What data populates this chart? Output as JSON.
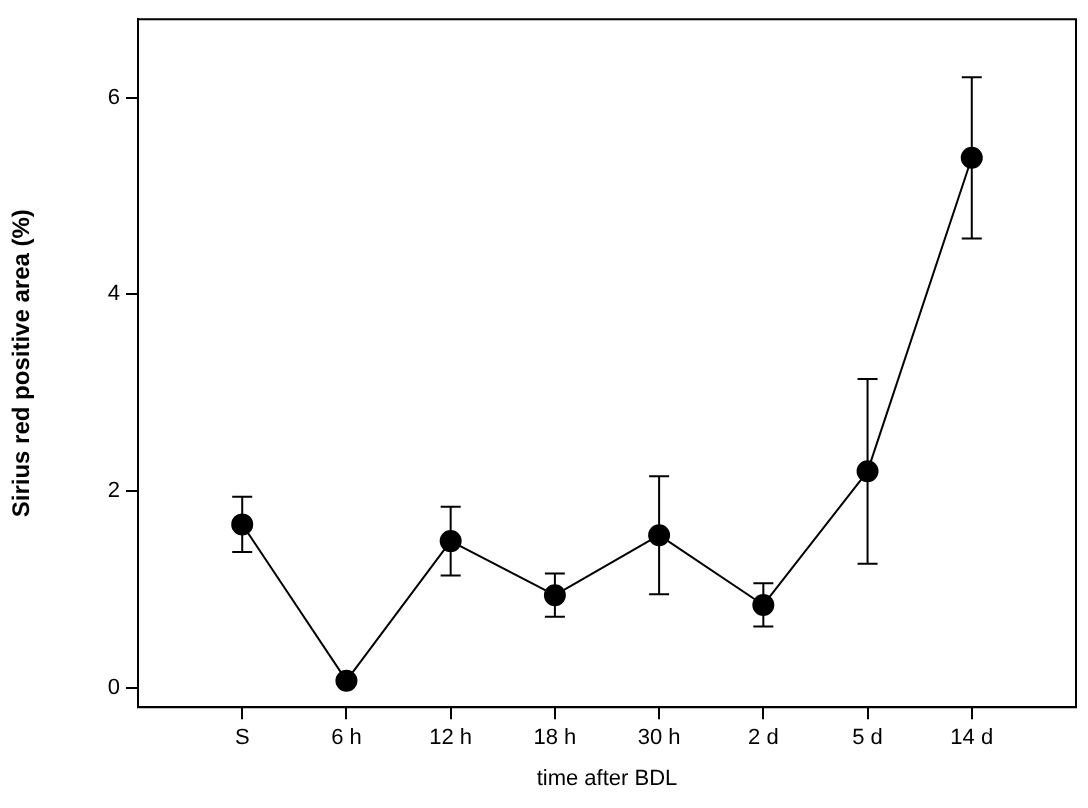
{
  "chart_data": {
    "type": "line",
    "xlabel": "time after BDL",
    "ylabel": "Sirius red positive area (%)",
    "categories": [
      "S",
      "6 h",
      "12 h",
      "18 h",
      "30 h",
      "2 d",
      "5 d",
      "14 d"
    ],
    "series": [
      {
        "color": "#000000",
        "values": [
          1.66,
          0.07,
          1.49,
          0.94,
          1.55,
          0.84,
          2.2,
          5.39
        ],
        "errors": [
          0.28,
          0.03,
          0.35,
          0.22,
          0.6,
          0.22,
          0.94,
          0.82
        ]
      }
    ],
    "ylim": [
      -0.2,
      6.8
    ],
    "yticks": [
      0,
      2,
      4,
      6
    ],
    "grid": false,
    "legend": false,
    "marker": "circle",
    "line_style": "solid"
  }
}
